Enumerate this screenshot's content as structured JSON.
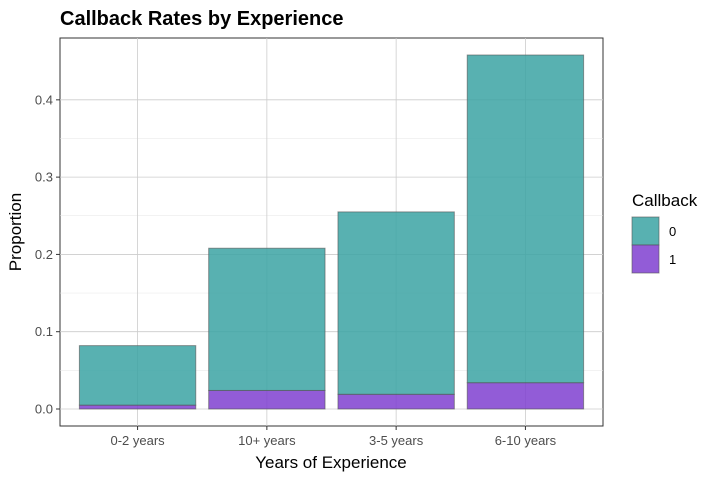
{
  "chart_data": {
    "type": "bar",
    "stacked": true,
    "title": "Callback Rates by Experience",
    "xlabel": "Years of Experience",
    "ylabel": "Proportion",
    "categories": [
      "0-2 years",
      "10+ years",
      "3-5 years",
      "6-10 years"
    ],
    "series": [
      {
        "name": "0",
        "color": "#3ba3a3",
        "values": [
          0.077,
          0.184,
          0.236,
          0.424
        ]
      },
      {
        "name": "1",
        "color": "#7f3fd0",
        "values": [
          0.005,
          0.024,
          0.019,
          0.034
        ]
      }
    ],
    "ylim": [
      -0.022,
      0.48
    ],
    "yticks": [
      0.0,
      0.1,
      0.2,
      0.3,
      0.4
    ],
    "ytick_labels": [
      "0.0",
      "0.1",
      "0.2",
      "0.3",
      "0.4"
    ],
    "grid": true,
    "legend": {
      "title": "Callback",
      "position": "right"
    }
  }
}
